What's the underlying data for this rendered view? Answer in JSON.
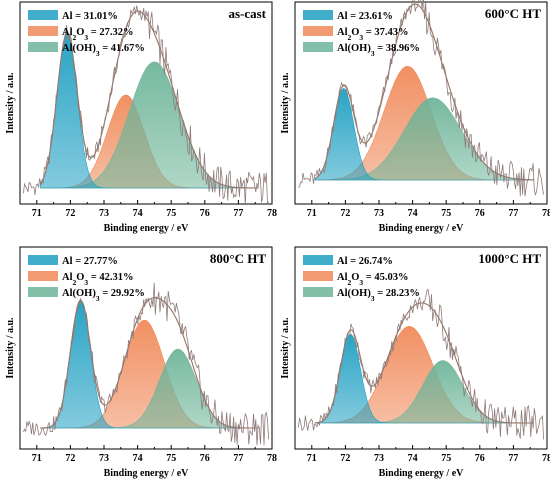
{
  "colors": {
    "Al": "#1e9fc2",
    "Al2O3": "#f08a5a",
    "AlOH3": "#6fb59a",
    "raw": "#8f7b7b",
    "envelope": "#9a7560"
  },
  "chart_data": [
    {
      "type": "area",
      "title": "as-cast",
      "xlabel": "Binding energy / eV",
      "ylabel": "Intensity / a.u.",
      "xlim": [
        70.5,
        78
      ],
      "xticks": [
        71,
        72,
        73,
        74,
        75,
        76,
        77,
        78
      ],
      "series": [
        {
          "label_base": "Al",
          "label_sub": "",
          "label_tail": " = 31.01%",
          "center": 71.9,
          "height": 0.93,
          "sigma": 0.3
        },
        {
          "label_base": "Al",
          "label_sub": "2",
          "label_mid": "O",
          "label_sub2": "3",
          "label_tail": " = 27.32%",
          "center": 73.65,
          "height": 0.56,
          "sigma": 0.55
        },
        {
          "label_base": "Al(OH)",
          "label_sub": "3",
          "label_tail": " = 41.67%",
          "center": 74.5,
          "height": 0.76,
          "sigma": 0.75
        }
      ]
    },
    {
      "type": "area",
      "title": "600°C HT",
      "xlabel": "Binding energy / eV",
      "ylabel": "Intensity / a.u.",
      "xlim": [
        70.5,
        78
      ],
      "xticks": [
        71,
        72,
        73,
        74,
        75,
        76,
        77,
        78
      ],
      "series": [
        {
          "label_base": "Al",
          "label_sub": "",
          "label_tail": " = 23.61%",
          "center": 71.95,
          "height": 0.58,
          "sigma": 0.3
        },
        {
          "label_base": "Al",
          "label_sub": "2",
          "label_mid": "O",
          "label_sub2": "3",
          "label_tail": " = 37.43%",
          "center": 73.85,
          "height": 0.72,
          "sigma": 0.7
        },
        {
          "label_base": "Al(OH)",
          "label_sub": "3",
          "label_tail": " = 38.96%",
          "center": 74.6,
          "height": 0.52,
          "sigma": 0.85
        }
      ]
    },
    {
      "type": "area",
      "title": "800°C HT",
      "xlabel": "Binding energy / eV",
      "ylabel": "Intensity / a.u.",
      "xlim": [
        70.5,
        78
      ],
      "xticks": [
        71,
        72,
        73,
        74,
        75,
        76,
        77,
        78
      ],
      "series": [
        {
          "label_base": "Al",
          "label_sub": "",
          "label_tail": " = 27.77%",
          "center": 72.3,
          "height": 0.79,
          "sigma": 0.3
        },
        {
          "label_base": "Al",
          "label_sub": "2",
          "label_mid": "O",
          "label_sub2": "3",
          "label_tail": " = 42.31%",
          "center": 74.2,
          "height": 0.67,
          "sigma": 0.6
        },
        {
          "label_base": "Al(OH)",
          "label_sub": "3",
          "label_tail": " = 29.92%",
          "center": 75.2,
          "height": 0.49,
          "sigma": 0.55
        }
      ]
    },
    {
      "type": "area",
      "title": "1000°C HT",
      "xlabel": "Binding energy / eV",
      "ylabel": "Intensity / a.u.",
      "xlim": [
        70.5,
        78
      ],
      "xticks": [
        71,
        72,
        73,
        74,
        75,
        76,
        77,
        78
      ],
      "series": [
        {
          "label_base": "Al",
          "label_sub": "",
          "label_tail": " = 26.74%",
          "center": 72.15,
          "height": 0.57,
          "sigma": 0.3
        },
        {
          "label_base": "Al",
          "label_sub": "2",
          "label_mid": "O",
          "label_sub2": "3",
          "label_tail": " = 45.03%",
          "center": 73.9,
          "height": 0.62,
          "sigma": 0.7
        },
        {
          "label_base": "Al(OH)",
          "label_sub": "3",
          "label_tail": " = 28.23%",
          "center": 74.9,
          "height": 0.4,
          "sigma": 0.6
        }
      ]
    }
  ]
}
